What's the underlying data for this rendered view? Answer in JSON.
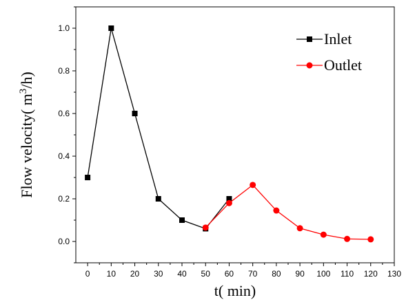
{
  "chart_data": {
    "type": "line",
    "xlabel": "t(  min)",
    "ylabel": {
      "main": "Flow velocity(  m",
      "sup": "3",
      "tail": "/h)"
    },
    "xlim": [
      -5,
      130
    ],
    "ylim": [
      -0.1,
      1.1
    ],
    "xticks": [
      0,
      10,
      20,
      30,
      40,
      50,
      60,
      70,
      80,
      90,
      100,
      110,
      120,
      130
    ],
    "yticks": [
      0.0,
      0.2,
      0.4,
      0.6,
      0.8,
      1.0
    ],
    "ytick_labels": [
      "0.0",
      "0.2",
      "0.4",
      "0.6",
      "0.8",
      "1.0"
    ],
    "legend_position": "top-right",
    "series": [
      {
        "name": "Inlet",
        "color": "#000000",
        "marker": "square",
        "x": [
          0,
          10,
          20,
          30,
          40,
          50,
          60
        ],
        "y": [
          0.3,
          1.0,
          0.6,
          0.2,
          0.1,
          0.06,
          0.2
        ]
      },
      {
        "name": "Outlet",
        "color": "#ff0000",
        "marker": "circle",
        "x": [
          50,
          60,
          70,
          80,
          90,
          100,
          110,
          120
        ],
        "y": [
          0.065,
          0.18,
          0.265,
          0.145,
          0.062,
          0.032,
          0.012,
          0.01
        ]
      }
    ]
  }
}
